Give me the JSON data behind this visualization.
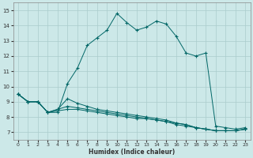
{
  "xlabel": "Humidex (Indice chaleur)",
  "background_color": "#cce8e8",
  "grid_color": "#aacccc",
  "line_color": "#006666",
  "xlim": [
    -0.5,
    23.5
  ],
  "ylim": [
    6.5,
    15.5
  ],
  "xticks": [
    0,
    1,
    2,
    3,
    4,
    5,
    6,
    7,
    8,
    9,
    10,
    11,
    12,
    13,
    14,
    15,
    16,
    17,
    18,
    19,
    20,
    21,
    22,
    23
  ],
  "yticks": [
    7,
    8,
    9,
    10,
    11,
    12,
    13,
    14,
    15
  ],
  "line1_x": [
    0,
    1,
    2,
    3,
    4,
    5,
    6,
    7,
    8,
    9,
    10,
    11,
    12,
    13,
    14,
    15,
    16,
    17,
    18,
    19,
    20,
    21,
    22,
    23
  ],
  "line1_y": [
    9.5,
    9.0,
    9.0,
    8.3,
    8.3,
    10.2,
    11.2,
    12.7,
    13.2,
    13.7,
    14.8,
    14.2,
    13.7,
    13.9,
    14.3,
    14.1,
    13.3,
    12.2,
    12.0,
    12.2,
    7.4,
    7.3,
    7.2,
    7.3
  ],
  "line2_x": [
    0,
    1,
    2,
    3,
    4,
    5,
    6,
    7,
    8,
    9,
    10,
    11,
    12,
    13,
    14,
    15,
    16,
    17,
    18,
    19,
    20,
    21,
    22,
    23
  ],
  "line2_y": [
    9.5,
    9.0,
    9.0,
    8.3,
    8.5,
    9.2,
    8.9,
    8.7,
    8.5,
    8.4,
    8.3,
    8.2,
    8.1,
    8.0,
    7.9,
    7.8,
    7.6,
    7.5,
    7.3,
    7.2,
    7.1,
    7.1,
    7.1,
    7.2
  ],
  "line3_x": [
    0,
    1,
    2,
    3,
    4,
    5,
    6,
    7,
    8,
    9,
    10,
    11,
    12,
    13,
    14,
    15,
    16,
    17,
    18,
    19,
    20,
    21,
    22,
    23
  ],
  "line3_y": [
    9.5,
    9.0,
    9.0,
    8.3,
    8.5,
    8.7,
    8.6,
    8.5,
    8.4,
    8.3,
    8.2,
    8.1,
    8.0,
    7.9,
    7.8,
    7.7,
    7.6,
    7.5,
    7.3,
    7.2,
    7.1,
    7.1,
    7.1,
    7.2
  ],
  "line4_x": [
    0,
    1,
    2,
    3,
    4,
    5,
    6,
    7,
    8,
    9,
    10,
    11,
    12,
    13,
    14,
    15,
    16,
    17,
    18,
    19,
    20,
    21,
    22,
    23
  ],
  "line4_y": [
    9.5,
    9.0,
    9.0,
    8.3,
    8.4,
    8.5,
    8.5,
    8.4,
    8.3,
    8.2,
    8.1,
    8.0,
    7.9,
    7.9,
    7.8,
    7.7,
    7.5,
    7.4,
    7.3,
    7.2,
    7.1,
    7.1,
    7.1,
    7.2
  ]
}
